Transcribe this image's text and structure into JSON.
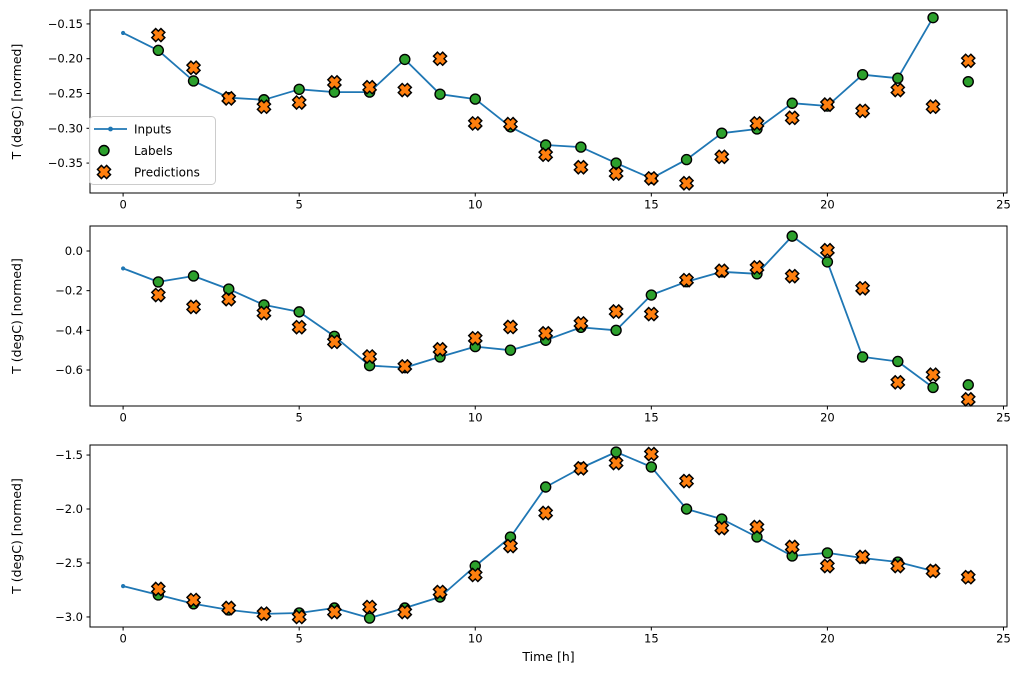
{
  "figure": {
    "background": "#ffffff",
    "xlabel": "Time [h]",
    "ylabel": "T (degC) [normed]",
    "legend": {
      "entries": [
        {
          "label": "Inputs",
          "type": "line",
          "color": "#1f77b4"
        },
        {
          "label": "Labels",
          "type": "circle",
          "color": "#2ca02c"
        },
        {
          "label": "Predictions",
          "type": "x",
          "color": "#ff7f0e"
        }
      ],
      "border_color": "#cccccc",
      "background": "#ffffff"
    },
    "colors": {
      "inputs": "#1f77b4",
      "labels": "#2ca02c",
      "predictions": "#ff7f0e",
      "marker_edge": "#000000",
      "spine": "#000000"
    }
  },
  "chart_data": [
    {
      "type": "line",
      "ylabel": "T (degC) [normed]",
      "xlim": [
        -0.94,
        25.1
      ],
      "ylim": [
        -0.393,
        -0.13
      ],
      "xtick_values": [
        0,
        5,
        10,
        15,
        20,
        25
      ],
      "xtick_labels": [
        "0",
        "5",
        "10",
        "15",
        "20",
        "25"
      ],
      "ytick_values": [
        -0.15,
        -0.2,
        -0.25,
        -0.3,
        -0.35
      ],
      "ytick_labels": [
        "−0.15",
        "−0.20",
        "−0.25",
        "−0.30",
        "−0.35"
      ],
      "series": [
        {
          "name": "Inputs",
          "kind": "line-dot",
          "x": [
            0,
            1,
            2,
            3,
            4,
            5,
            6,
            7,
            8,
            9,
            10,
            11,
            12,
            13,
            14,
            15,
            16,
            17,
            18,
            19,
            20,
            21,
            22,
            23
          ],
          "y": [
            -0.163,
            -0.188,
            -0.232,
            -0.256,
            -0.259,
            -0.244,
            -0.248,
            -0.248,
            -0.201,
            -0.251,
            -0.258,
            -0.298,
            -0.324,
            -0.327,
            -0.35,
            -0.372,
            -0.345,
            -0.307,
            -0.301,
            -0.264,
            -0.268,
            -0.223,
            -0.228,
            -0.141
          ]
        },
        {
          "name": "Labels",
          "kind": "scatter-circle",
          "x": [
            1,
            2,
            3,
            4,
            5,
            6,
            7,
            8,
            9,
            10,
            11,
            12,
            13,
            14,
            15,
            16,
            17,
            18,
            19,
            20,
            21,
            22,
            23,
            24
          ],
          "y": [
            -0.188,
            -0.232,
            -0.256,
            -0.259,
            -0.244,
            -0.248,
            -0.248,
            -0.201,
            -0.251,
            -0.258,
            -0.298,
            -0.324,
            -0.327,
            -0.35,
            -0.372,
            -0.345,
            -0.307,
            -0.301,
            -0.264,
            -0.268,
            -0.223,
            -0.228,
            -0.141,
            -0.233
          ]
        },
        {
          "name": "Predictions",
          "kind": "scatter-x",
          "x": [
            1,
            2,
            3,
            4,
            5,
            6,
            7,
            8,
            9,
            10,
            11,
            12,
            13,
            14,
            15,
            16,
            17,
            18,
            19,
            20,
            21,
            22,
            23,
            24
          ],
          "y": [
            -0.166,
            -0.213,
            -0.257,
            -0.269,
            -0.263,
            -0.234,
            -0.241,
            -0.245,
            -0.2,
            -0.293,
            -0.294,
            -0.338,
            -0.356,
            -0.365,
            -0.372,
            -0.379,
            -0.341,
            -0.293,
            -0.285,
            -0.266,
            -0.275,
            -0.245,
            -0.269,
            -0.203
          ]
        }
      ]
    },
    {
      "type": "line",
      "ylabel": "T (degC) [normed]",
      "xlim": [
        -0.94,
        25.1
      ],
      "ylim": [
        -0.7815,
        0.126
      ],
      "xtick_values": [
        0,
        5,
        10,
        15,
        20,
        25
      ],
      "xtick_labels": [
        "0",
        "5",
        "10",
        "15",
        "20",
        "25"
      ],
      "ytick_values": [
        0.0,
        -0.2,
        -0.4,
        -0.6
      ],
      "ytick_labels": [
        "0.0",
        "−0.2",
        "−0.4",
        "−0.6"
      ],
      "series": [
        {
          "name": "Inputs",
          "kind": "line-dot",
          "x": [
            0,
            1,
            2,
            3,
            4,
            5,
            6,
            7,
            8,
            9,
            10,
            11,
            12,
            13,
            14,
            15,
            16,
            17,
            18,
            19,
            20,
            21,
            22,
            23
          ],
          "y": [
            -0.088,
            -0.156,
            -0.126,
            -0.192,
            -0.272,
            -0.307,
            -0.43,
            -0.578,
            -0.588,
            -0.534,
            -0.482,
            -0.5,
            -0.45,
            -0.385,
            -0.4,
            -0.222,
            -0.155,
            -0.105,
            -0.115,
            0.075,
            -0.055,
            -0.534,
            -0.557,
            -0.688
          ]
        },
        {
          "name": "Labels",
          "kind": "scatter-circle",
          "x": [
            1,
            2,
            3,
            4,
            5,
            6,
            7,
            8,
            9,
            10,
            11,
            12,
            13,
            14,
            15,
            16,
            17,
            18,
            19,
            20,
            21,
            22,
            23,
            24
          ],
          "y": [
            -0.156,
            -0.126,
            -0.192,
            -0.272,
            -0.307,
            -0.43,
            -0.578,
            -0.588,
            -0.534,
            -0.482,
            -0.5,
            -0.45,
            -0.385,
            -0.4,
            -0.222,
            -0.155,
            -0.105,
            -0.115,
            0.075,
            -0.055,
            -0.534,
            -0.557,
            -0.688,
            -0.675
          ]
        },
        {
          "name": "Predictions",
          "kind": "scatter-x",
          "x": [
            1,
            2,
            3,
            4,
            5,
            6,
            7,
            8,
            9,
            10,
            11,
            12,
            13,
            14,
            15,
            16,
            17,
            18,
            19,
            20,
            21,
            22,
            23,
            24
          ],
          "y": [
            -0.222,
            -0.282,
            -0.243,
            -0.313,
            -0.384,
            -0.458,
            -0.532,
            -0.582,
            -0.496,
            -0.44,
            -0.383,
            -0.415,
            -0.365,
            -0.305,
            -0.318,
            -0.147,
            -0.1,
            -0.083,
            -0.127,
            0.004,
            -0.188,
            -0.662,
            -0.624,
            -0.748
          ]
        }
      ]
    },
    {
      "type": "line",
      "ylabel": "T (degC) [normed]",
      "xlabel": "Time [h]",
      "xlim": [
        -0.94,
        25.1
      ],
      "ylim": [
        -3.093,
        -1.407
      ],
      "xtick_values": [
        0,
        5,
        10,
        15,
        20,
        25
      ],
      "xtick_labels": [
        "0",
        "5",
        "10",
        "15",
        "20",
        "25"
      ],
      "ytick_values": [
        -1.5,
        -2.0,
        -2.5,
        -3.0
      ],
      "ytick_labels": [
        "−1.5",
        "−2.0",
        "−2.5",
        "−3.0"
      ],
      "series": [
        {
          "name": "Inputs",
          "kind": "line-dot",
          "x": [
            0,
            1,
            2,
            3,
            4,
            5,
            6,
            7,
            8,
            9,
            10,
            11,
            12,
            13,
            14,
            15,
            16,
            17,
            18,
            19,
            20,
            21,
            22,
            23
          ],
          "y": [
            -2.714,
            -2.796,
            -2.878,
            -2.935,
            -2.972,
            -2.963,
            -2.917,
            -3.01,
            -2.917,
            -2.815,
            -2.528,
            -2.26,
            -1.796,
            -1.62,
            -1.472,
            -1.61,
            -2.0,
            -2.093,
            -2.259,
            -2.435,
            -2.407,
            -2.454,
            -2.491,
            -2.574
          ]
        },
        {
          "name": "Labels",
          "kind": "scatter-circle",
          "x": [
            1,
            2,
            3,
            4,
            5,
            6,
            7,
            8,
            9,
            10,
            11,
            12,
            13,
            14,
            15,
            16,
            17,
            18,
            19,
            20,
            21,
            22,
            23,
            24
          ],
          "y": [
            -2.796,
            -2.878,
            -2.935,
            -2.972,
            -2.963,
            -2.917,
            -3.01,
            -2.917,
            -2.815,
            -2.528,
            -2.26,
            -1.796,
            -1.62,
            -1.472,
            -1.61,
            -2.0,
            -2.093,
            -2.259,
            -2.435,
            -2.407,
            -2.454,
            -2.491,
            -2.574,
            -2.63
          ]
        },
        {
          "name": "Predictions",
          "kind": "scatter-x",
          "x": [
            1,
            2,
            3,
            4,
            5,
            6,
            7,
            8,
            9,
            10,
            11,
            12,
            13,
            14,
            15,
            16,
            17,
            18,
            19,
            20,
            21,
            22,
            23,
            24
          ],
          "y": [
            -2.741,
            -2.843,
            -2.917,
            -2.97,
            -3.0,
            -2.954,
            -2.908,
            -2.954,
            -2.769,
            -2.611,
            -2.343,
            -2.037,
            -1.623,
            -1.574,
            -1.491,
            -1.741,
            -2.176,
            -2.167,
            -2.352,
            -2.528,
            -2.444,
            -2.528,
            -2.574,
            -2.632
          ]
        }
      ]
    }
  ]
}
